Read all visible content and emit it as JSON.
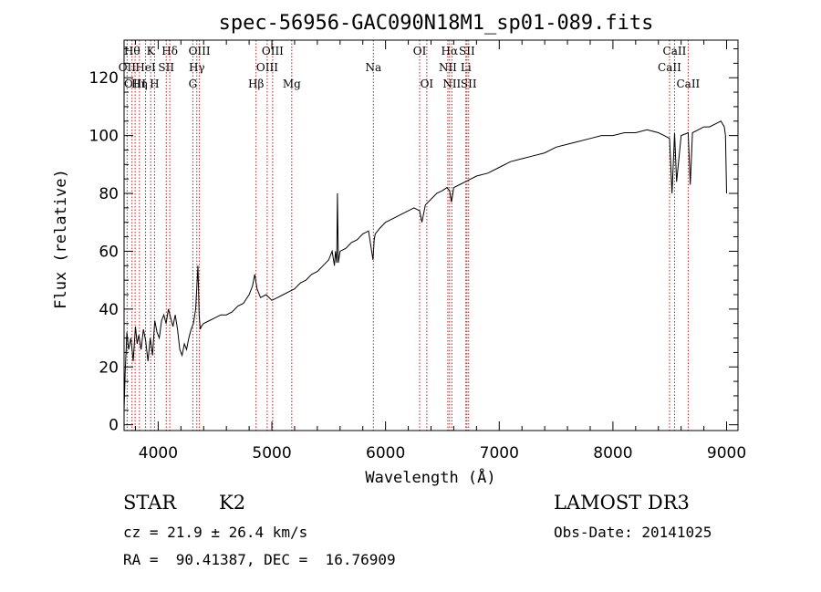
{
  "chart_data": {
    "type": "line",
    "title": "spec-56956-GAC090N18M1_sp01-089.fits",
    "xlabel": "Wavelength (Å)",
    "ylabel": "Flux (relative)",
    "xlim": [
      3700,
      9100
    ],
    "ylim": [
      -2,
      133
    ],
    "xticks": [
      4000,
      5000,
      6000,
      7000,
      8000,
      9000
    ],
    "xtick_labels": [
      "4000",
      "5000",
      "6000",
      "7000",
      "8000",
      "9000"
    ],
    "yticks": [
      0,
      20,
      40,
      60,
      80,
      100,
      120
    ],
    "ytick_labels": [
      "0",
      "20",
      "40",
      "60",
      "80",
      "100",
      "120"
    ],
    "grid": false,
    "series": [
      {
        "name": "flux",
        "x": [
          3700,
          3710,
          3725,
          3740,
          3760,
          3780,
          3800,
          3815,
          3830,
          3850,
          3870,
          3890,
          3910,
          3930,
          3950,
          3970,
          3990,
          4010,
          4030,
          4050,
          4070,
          4090,
          4110,
          4130,
          4150,
          4170,
          4190,
          4210,
          4230,
          4250,
          4270,
          4290,
          4310,
          4330,
          4350,
          4360,
          4370,
          4380,
          4400,
          4450,
          4500,
          4550,
          4600,
          4650,
          4700,
          4750,
          4800,
          4830,
          4850,
          4870,
          4900,
          4950,
          5000,
          5050,
          5100,
          5150,
          5200,
          5250,
          5300,
          5350,
          5400,
          5450,
          5500,
          5530,
          5550,
          5560,
          5570,
          5577,
          5585,
          5600,
          5650,
          5700,
          5750,
          5800,
          5850,
          5890,
          5900,
          5910,
          5950,
          6000,
          6050,
          6100,
          6150,
          6200,
          6250,
          6300,
          6320,
          6350,
          6400,
          6450,
          6500,
          6540,
          6563,
          6580,
          6600,
          6650,
          6700,
          6750,
          6800,
          6900,
          7000,
          7100,
          7200,
          7300,
          7400,
          7500,
          7600,
          7700,
          7800,
          7900,
          8000,
          8100,
          8200,
          8300,
          8400,
          8450,
          8498,
          8520,
          8542,
          8560,
          8600,
          8662,
          8680,
          8700,
          8750,
          8800,
          8850,
          8900,
          8950,
          8980,
          8990,
          9000
        ],
        "y": [
          5,
          18,
          32,
          26,
          30,
          22,
          34,
          28,
          31,
          26,
          33,
          29,
          22,
          30,
          24,
          36,
          32,
          30,
          36,
          38,
          35,
          40,
          37,
          34,
          38,
          33,
          26,
          24,
          28,
          26,
          30,
          33,
          35,
          40,
          55,
          38,
          33,
          34,
          35,
          36,
          37,
          38,
          38,
          39,
          41,
          42,
          45,
          48,
          52,
          47,
          44,
          45,
          43,
          44,
          45,
          46,
          47,
          49,
          50,
          52,
          53,
          55,
          57,
          60,
          55,
          60,
          56,
          80,
          56,
          60,
          61,
          63,
          64,
          66,
          67,
          57,
          64,
          66,
          68,
          70,
          71,
          72,
          73,
          74,
          75,
          74,
          70,
          76,
          78,
          80,
          81,
          82,
          81,
          77,
          82,
          83,
          84,
          85,
          86,
          87,
          89,
          91,
          92,
          93,
          94,
          96,
          97,
          98,
          99,
          100,
          100,
          101,
          101,
          102,
          101,
          100,
          99,
          80,
          101,
          84,
          100,
          101,
          83,
          101,
          102,
          103,
          103,
          104,
          105,
          103,
          100,
          80
        ]
      }
    ],
    "emission_lines": [
      {
        "x": 3727,
        "label": "OII",
        "tier": 2
      },
      {
        "x": 3770,
        "label": "Hθ",
        "tier": 1
      },
      {
        "x": 3797,
        "label": "OIII",
        "tier": 3
      },
      {
        "x": 3835,
        "label": "Hη",
        "tier": 3
      },
      {
        "x": 3889,
        "label": "HeI",
        "tier": 2
      },
      {
        "x": 3934,
        "label": "K",
        "tier": 1
      },
      {
        "x": 3968,
        "label": "H",
        "tier": 3
      },
      {
        "x": 4071,
        "label": "SII",
        "tier": 2
      },
      {
        "x": 4102,
        "label": "Hδ",
        "tier": 1
      },
      {
        "x": 4305,
        "label": "G",
        "tier": 3
      },
      {
        "x": 4340,
        "label": "Hγ",
        "tier": 2
      },
      {
        "x": 4363,
        "label": "OIII",
        "tier": 1
      },
      {
        "x": 4861,
        "label": "Hβ",
        "tier": 3
      },
      {
        "x": 4959,
        "label": "OIII",
        "tier": 2
      },
      {
        "x": 5007,
        "label": "OIII",
        "tier": 1
      },
      {
        "x": 5175,
        "label": "Mg",
        "tier": 3
      },
      {
        "x": 5893,
        "label": "Na",
        "tier": 2
      },
      {
        "x": 6300,
        "label": "OI",
        "tier": 1
      },
      {
        "x": 6363,
        "label": "OI",
        "tier": 3
      },
      {
        "x": 6548,
        "label": "NII",
        "tier": 2
      },
      {
        "x": 6563,
        "label": "Hα",
        "tier": 1
      },
      {
        "x": 6583,
        "label": "NII",
        "tier": 3
      },
      {
        "x": 6707,
        "label": "Li",
        "tier": 2
      },
      {
        "x": 6716,
        "label": "SII",
        "tier": 1
      },
      {
        "x": 6731,
        "label": "SII",
        "tier": 3
      },
      {
        "x": 8498,
        "label": "CaII",
        "tier": 2
      },
      {
        "x": 8542,
        "label": "CaII",
        "tier": 1
      },
      {
        "x": 8662,
        "label": "CaII",
        "tier": 3
      }
    ]
  },
  "info": {
    "object_class": "STAR",
    "subclass": "K2",
    "survey": "LAMOST DR3",
    "redshift": "cz = 21.9 ± 26.4 km/s",
    "obs_date": "Obs-Date: 20141025",
    "coords": "RA =  90.41387, DEC =  16.76909"
  },
  "colors": {
    "line_marker": "#b22222",
    "spectrum": "#000000"
  }
}
